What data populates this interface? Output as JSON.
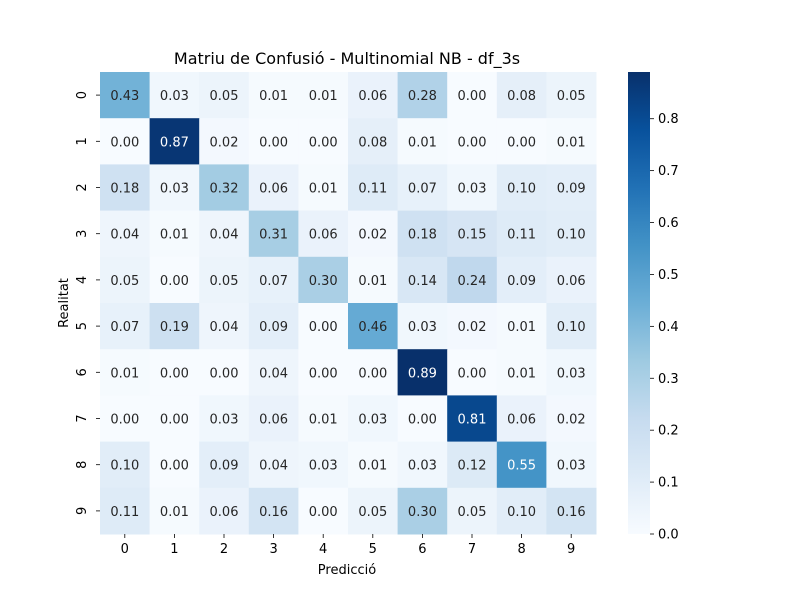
{
  "chart_data": {
    "type": "heatmap",
    "title": "Matriu de Confusió - Multinomial NB - df_3s",
    "xlabel": "Predicció",
    "ylabel": "Realitat",
    "x_categories": [
      "0",
      "1",
      "2",
      "3",
      "4",
      "5",
      "6",
      "7",
      "8",
      "9"
    ],
    "y_categories": [
      "0",
      "1",
      "2",
      "3",
      "4",
      "5",
      "6",
      "7",
      "8",
      "9"
    ],
    "values": [
      [
        0.43,
        0.03,
        0.05,
        0.01,
        0.01,
        0.06,
        0.28,
        0.0,
        0.08,
        0.05
      ],
      [
        0.0,
        0.87,
        0.02,
        0.0,
        0.0,
        0.08,
        0.01,
        0.0,
        0.0,
        0.01
      ],
      [
        0.18,
        0.03,
        0.32,
        0.06,
        0.01,
        0.11,
        0.07,
        0.03,
        0.1,
        0.09
      ],
      [
        0.04,
        0.01,
        0.04,
        0.31,
        0.06,
        0.02,
        0.18,
        0.15,
        0.11,
        0.1
      ],
      [
        0.05,
        0.0,
        0.05,
        0.07,
        0.3,
        0.01,
        0.14,
        0.24,
        0.09,
        0.06
      ],
      [
        0.07,
        0.19,
        0.04,
        0.09,
        0.0,
        0.46,
        0.03,
        0.02,
        0.01,
        0.1
      ],
      [
        0.01,
        0.0,
        0.0,
        0.04,
        0.0,
        0.0,
        0.89,
        0.0,
        0.01,
        0.03
      ],
      [
        0.0,
        0.0,
        0.03,
        0.06,
        0.01,
        0.03,
        0.0,
        0.81,
        0.06,
        0.02
      ],
      [
        0.1,
        0.0,
        0.09,
        0.04,
        0.03,
        0.01,
        0.03,
        0.12,
        0.55,
        0.03
      ],
      [
        0.11,
        0.01,
        0.06,
        0.16,
        0.0,
        0.05,
        0.3,
        0.05,
        0.1,
        0.16
      ]
    ],
    "annotation_format": "0.00",
    "colormap": "Blues",
    "colorbar": {
      "range": [
        0.0,
        0.89
      ],
      "ticks": [
        "0.0",
        "0.1",
        "0.2",
        "0.3",
        "0.4",
        "0.5",
        "0.6",
        "0.7",
        "0.8"
      ]
    },
    "grid": false
  }
}
